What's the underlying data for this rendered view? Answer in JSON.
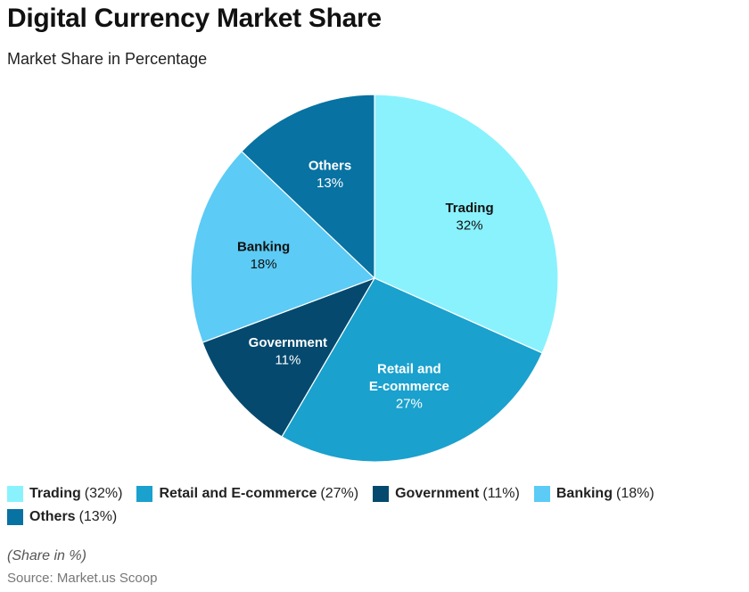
{
  "header": {
    "title": "Digital Currency Market Share",
    "subtitle": "Market Share in Percentage"
  },
  "chart_data": {
    "type": "pie",
    "title": "Digital Currency Market Share",
    "subtitle": "Market Share in Percentage",
    "slices": [
      {
        "name": "Trading",
        "value": 32,
        "label_lines": [
          "Trading"
        ],
        "percent_text": "32%",
        "legend_value": "(32%)",
        "color": "#8af2fd",
        "label_color": "#111111"
      },
      {
        "name": "Retail and E-commerce",
        "value": 27,
        "label_lines": [
          "Retail and",
          "E-commerce"
        ],
        "percent_text": "27%",
        "legend_value": "(27%)",
        "color": "#1aa1cd",
        "label_color": "#ffffff"
      },
      {
        "name": "Government",
        "value": 11,
        "label_lines": [
          "Government"
        ],
        "percent_text": "11%",
        "legend_value": "(11%)",
        "color": "#05496e",
        "label_color": "#ffffff"
      },
      {
        "name": "Banking",
        "value": 18,
        "label_lines": [
          "Banking"
        ],
        "percent_text": "18%",
        "legend_value": "(18%)",
        "color": "#5ccbf5",
        "label_color": "#111111"
      },
      {
        "name": "Others",
        "value": 13,
        "label_lines": [
          "Others"
        ],
        "percent_text": "13%",
        "legend_value": "(13%)",
        "color": "#0872a2",
        "label_color": "#ffffff"
      }
    ],
    "start": "top",
    "direction": "clockwise",
    "legend_placement": "bottom"
  },
  "footer": {
    "note": "(Share in %)",
    "source": "Source: Market.us Scoop"
  }
}
